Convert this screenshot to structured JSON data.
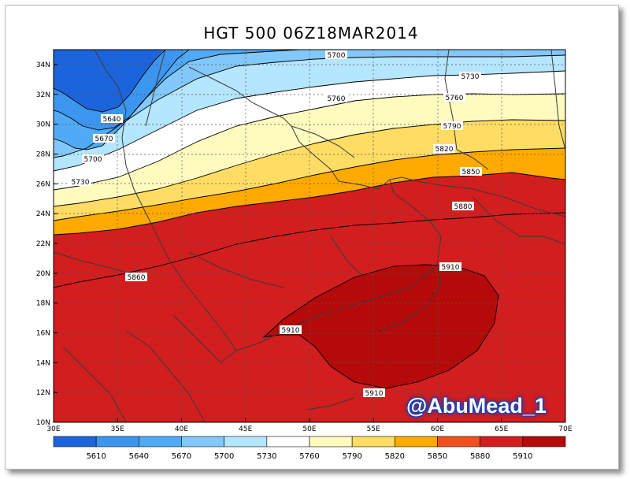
{
  "title": "HGT 500 06Z18MAR2014",
  "watermark": "@AbuMead_1",
  "lon_labels": [
    "30E",
    "35E",
    "40E",
    "45E",
    "50E",
    "55E",
    "60E",
    "65E",
    "70E"
  ],
  "lat_labels": [
    "10N",
    "12N",
    "14N",
    "16N",
    "18N",
    "20N",
    "22N",
    "24N",
    "26N",
    "28N",
    "30N",
    "32N",
    "34N"
  ],
  "legend": {
    "levels": [
      "5610",
      "5640",
      "5670",
      "5700",
      "5730",
      "5760",
      "5790",
      "5820",
      "5850",
      "5880",
      "5910"
    ],
    "colors": [
      "#1c64dc",
      "#3c96f0",
      "#50aaf5",
      "#82c8fa",
      "#b4e6ff",
      "#ffffff",
      "#fffabe",
      "#ffdc64",
      "#ffaa00",
      "#f05020",
      "#d21e1e",
      "#b40a0a"
    ]
  },
  "contour_labels": [
    "5700",
    "5730",
    "5760",
    "5640",
    "5670",
    "5700",
    "5730",
    "5760",
    "5790",
    "5820",
    "5850",
    "5880",
    "5860",
    "5910",
    "5910",
    "5910"
  ]
}
